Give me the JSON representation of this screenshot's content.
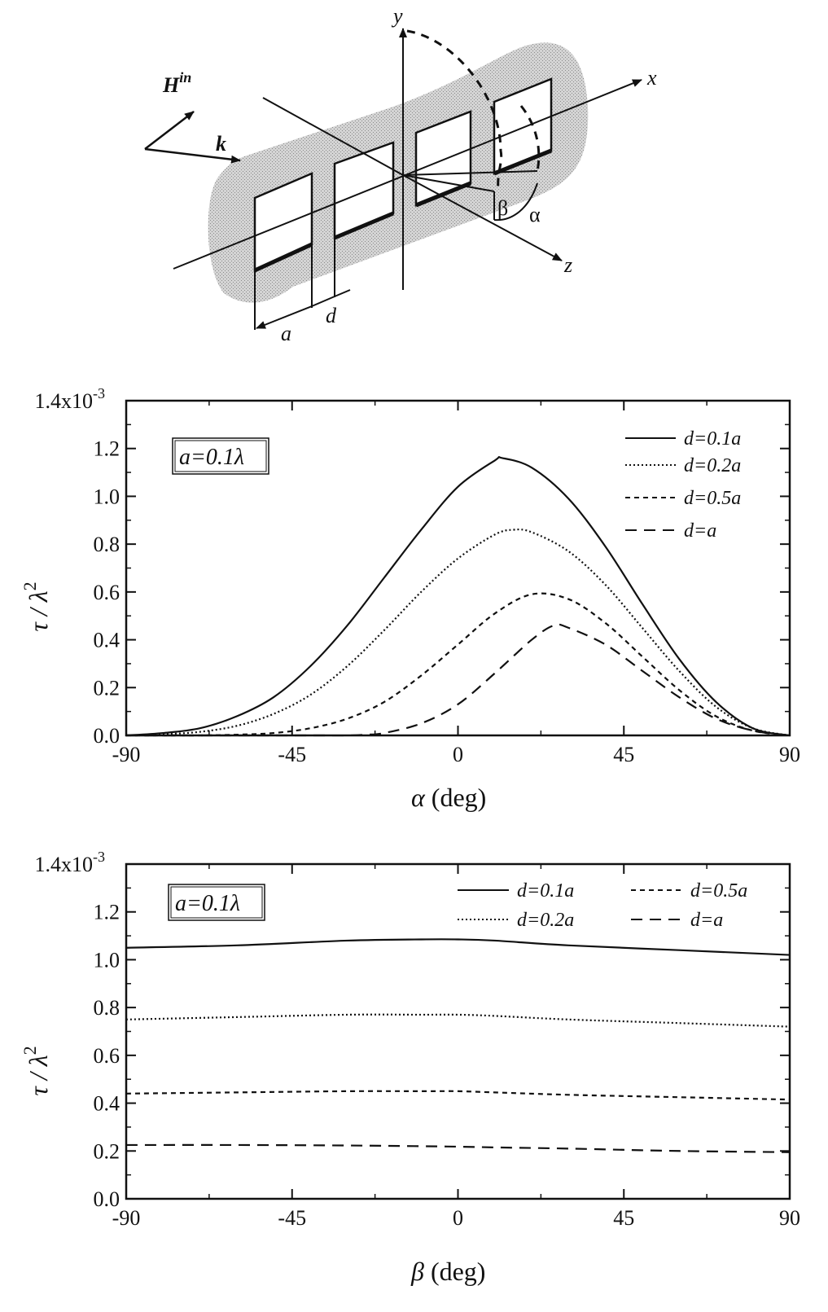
{
  "diagram": {
    "labels": {
      "y": "y",
      "x": "x",
      "z": "z",
      "H": "H",
      "Hsup": "in",
      "k": "k",
      "beta": "β",
      "alpha": "α",
      "a": "a",
      "d": "d"
    }
  },
  "chart_data": [
    {
      "type": "line",
      "xlabel_sym": "α",
      "xlabel_unit": "(deg)",
      "ylabel_sym": "τ / λ",
      "ylabel_exp": "2",
      "xlim": [
        -90,
        90
      ],
      "ylim": [
        0,
        1.4
      ],
      "xticks": [
        -90,
        -45,
        0,
        45,
        90
      ],
      "xtick_labels": [
        "-90",
        "-45",
        "0",
        "45",
        "90"
      ],
      "yticks": [
        0,
        0.2,
        0.4,
        0.6,
        0.8,
        1.0,
        1.2,
        1.4
      ],
      "ytick_labels": [
        "0.0",
        "0.2",
        "0.4",
        "0.6",
        "0.8",
        "1.0",
        "1.2",
        "1.4x10"
      ],
      "ytick_top_exp": "-3",
      "box_label": "a=0.1λ",
      "legend_position": "top-right",
      "series": [
        {
          "name": "d=0.1a",
          "style": "solid",
          "peak": 1.16,
          "peak_x": 12,
          "x": [
            -90,
            -80,
            -70,
            -60,
            -50,
            -40,
            -30,
            -20,
            -10,
            0,
            10,
            12,
            20,
            30,
            40,
            50,
            60,
            70,
            80,
            90
          ],
          "y": [
            0,
            0.01,
            0.03,
            0.08,
            0.16,
            0.29,
            0.46,
            0.66,
            0.86,
            1.04,
            1.15,
            1.16,
            1.12,
            0.99,
            0.79,
            0.55,
            0.32,
            0.14,
            0.03,
            0
          ]
        },
        {
          "name": "d=0.2a",
          "style": "dotted",
          "peak": 0.86,
          "peak_x": 15,
          "x": [
            -90,
            -80,
            -70,
            -60,
            -50,
            -40,
            -30,
            -20,
            -10,
            0,
            10,
            15,
            20,
            30,
            40,
            50,
            60,
            70,
            80,
            90
          ],
          "y": [
            0,
            0.005,
            0.015,
            0.04,
            0.09,
            0.17,
            0.29,
            0.44,
            0.6,
            0.74,
            0.84,
            0.86,
            0.85,
            0.77,
            0.63,
            0.45,
            0.27,
            0.12,
            0.03,
            0
          ]
        },
        {
          "name": "d=0.5a",
          "style": "short-dash",
          "peak": 0.59,
          "peak_x": 20,
          "x": [
            -90,
            -80,
            -70,
            -60,
            -50,
            -40,
            -30,
            -20,
            -10,
            0,
            10,
            20,
            30,
            40,
            50,
            60,
            70,
            80,
            90
          ],
          "y": [
            0,
            0,
            0,
            0.003,
            0.01,
            0.03,
            0.07,
            0.14,
            0.25,
            0.38,
            0.51,
            0.59,
            0.57,
            0.47,
            0.33,
            0.19,
            0.08,
            0.02,
            0
          ]
        },
        {
          "name": "d=a",
          "style": "long-dash",
          "peak": 0.46,
          "peak_x": 26,
          "x": [
            -90,
            -60,
            -40,
            -30,
            -25,
            -20,
            -10,
            0,
            10,
            20,
            26,
            30,
            40,
            50,
            60,
            70,
            80,
            90
          ],
          "y": [
            0,
            0,
            0,
            0,
            0.003,
            0.01,
            0.05,
            0.13,
            0.26,
            0.4,
            0.46,
            0.45,
            0.38,
            0.27,
            0.16,
            0.07,
            0.02,
            0
          ]
        }
      ]
    },
    {
      "type": "line",
      "xlabel_sym": "β",
      "xlabel_unit": "(deg)",
      "ylabel_sym": "τ / λ",
      "ylabel_exp": "2",
      "xlim": [
        -90,
        90
      ],
      "ylim": [
        0,
        1.4
      ],
      "xticks": [
        -90,
        -45,
        0,
        45,
        90
      ],
      "xtick_labels": [
        "-90",
        "-45",
        "0",
        "45",
        "90"
      ],
      "yticks": [
        0,
        0.2,
        0.4,
        0.6,
        0.8,
        1.0,
        1.2,
        1.4
      ],
      "ytick_labels": [
        "0.0",
        "0.2",
        "0.4",
        "0.6",
        "0.8",
        "1.0",
        "1.2",
        "1.4x10"
      ],
      "ytick_top_exp": "-3",
      "box_label": "a=0.1λ",
      "legend_position": "top-right",
      "series": [
        {
          "name": "d=0.1a",
          "style": "solid",
          "x": [
            -90,
            -60,
            -30,
            -10,
            0,
            10,
            30,
            60,
            90
          ],
          "y": [
            1.05,
            1.06,
            1.08,
            1.085,
            1.085,
            1.08,
            1.06,
            1.04,
            1.02
          ]
        },
        {
          "name": "d=0.2a",
          "style": "dotted",
          "x": [
            -90,
            -60,
            -30,
            -10,
            0,
            10,
            30,
            60,
            90
          ],
          "y": [
            0.75,
            0.76,
            0.77,
            0.77,
            0.77,
            0.765,
            0.75,
            0.735,
            0.72
          ]
        },
        {
          "name": "d=0.5a",
          "style": "short-dash",
          "x": [
            -90,
            -60,
            -30,
            -10,
            0,
            10,
            30,
            60,
            90
          ],
          "y": [
            0.44,
            0.445,
            0.45,
            0.45,
            0.45,
            0.445,
            0.435,
            0.425,
            0.415
          ]
        },
        {
          "name": "d=a",
          "style": "long-dash",
          "x": [
            -90,
            -60,
            -30,
            -10,
            0,
            10,
            30,
            60,
            90
          ],
          "y": [
            0.225,
            0.225,
            0.223,
            0.22,
            0.218,
            0.215,
            0.21,
            0.2,
            0.195
          ]
        }
      ]
    }
  ]
}
